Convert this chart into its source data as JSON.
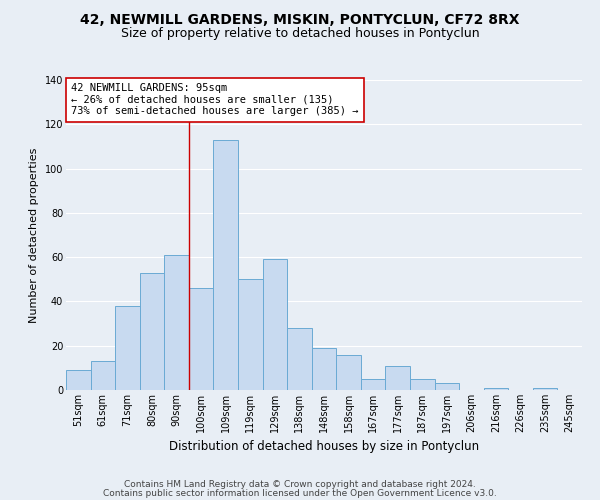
{
  "title": "42, NEWMILL GARDENS, MISKIN, PONTYCLUN, CF72 8RX",
  "subtitle": "Size of property relative to detached houses in Pontyclun",
  "xlabel": "Distribution of detached houses by size in Pontyclun",
  "ylabel": "Number of detached properties",
  "bar_labels": [
    "51sqm",
    "61sqm",
    "71sqm",
    "80sqm",
    "90sqm",
    "100sqm",
    "109sqm",
    "119sqm",
    "129sqm",
    "138sqm",
    "148sqm",
    "158sqm",
    "167sqm",
    "177sqm",
    "187sqm",
    "197sqm",
    "206sqm",
    "216sqm",
    "226sqm",
    "235sqm",
    "245sqm"
  ],
  "bar_values": [
    9,
    13,
    38,
    53,
    61,
    46,
    113,
    50,
    59,
    28,
    19,
    16,
    5,
    11,
    5,
    3,
    0,
    1,
    0,
    1,
    0
  ],
  "bar_color": "#c8daf0",
  "bar_edge_color": "#6aaad4",
  "vline_x": 4.5,
  "vline_color": "#cc0000",
  "ylim": [
    0,
    140
  ],
  "yticks": [
    0,
    20,
    40,
    60,
    80,
    100,
    120,
    140
  ],
  "annotation_title": "42 NEWMILL GARDENS: 95sqm",
  "annotation_line1": "← 26% of detached houses are smaller (135)",
  "annotation_line2": "73% of semi-detached houses are larger (385) →",
  "annotation_box_facecolor": "#ffffff",
  "annotation_box_edgecolor": "#cc0000",
  "footer1": "Contains HM Land Registry data © Crown copyright and database right 2024.",
  "footer2": "Contains public sector information licensed under the Open Government Licence v3.0.",
  "bg_color": "#e8eef5",
  "plot_bg_color": "#e8eef5",
  "grid_color": "#ffffff",
  "title_fontsize": 10,
  "subtitle_fontsize": 9,
  "xlabel_fontsize": 8.5,
  "ylabel_fontsize": 8,
  "tick_fontsize": 7,
  "annotation_fontsize": 7.5,
  "footer_fontsize": 6.5
}
